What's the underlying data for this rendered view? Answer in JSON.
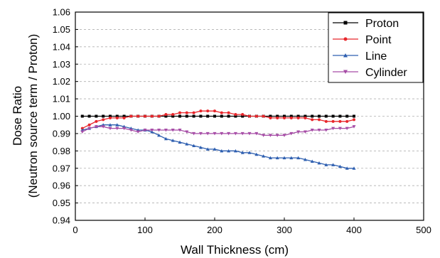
{
  "chart_data": {
    "type": "line",
    "xlabel": "Wall Thickness (cm)",
    "ylabel_line1": "Dose Ratio",
    "ylabel_line2": "(Neutron source term / Proton)",
    "xlim": [
      0,
      500
    ],
    "ylim": [
      0.94,
      1.06
    ],
    "x_ticks": [
      "0",
      "100",
      "200",
      "300",
      "400",
      "500"
    ],
    "y_ticks": [
      "0.94",
      "0.95",
      "0.96",
      "0.97",
      "0.98",
      "0.99",
      "1.00",
      "1.01",
      "1.02",
      "1.03",
      "1.04",
      "1.05",
      "1.06"
    ],
    "grid": "horizontal dashed",
    "legend_position": "top-right",
    "x": [
      10,
      20,
      30,
      40,
      50,
      60,
      70,
      80,
      90,
      100,
      110,
      120,
      130,
      140,
      150,
      160,
      170,
      180,
      190,
      200,
      210,
      220,
      230,
      240,
      250,
      260,
      270,
      280,
      290,
      300,
      310,
      320,
      330,
      340,
      350,
      360,
      370,
      380,
      390,
      400
    ],
    "series": [
      {
        "name": "Proton",
        "color": "#000000",
        "marker": "square",
        "values": [
          1.0,
          1.0,
          1.0,
          1.0,
          1.0,
          1.0,
          1.0,
          1.0,
          1.0,
          1.0,
          1.0,
          1.0,
          1.0,
          1.0,
          1.0,
          1.0,
          1.0,
          1.0,
          1.0,
          1.0,
          1.0,
          1.0,
          1.0,
          1.0,
          1.0,
          1.0,
          1.0,
          1.0,
          1.0,
          1.0,
          1.0,
          1.0,
          1.0,
          1.0,
          1.0,
          1.0,
          1.0,
          1.0,
          1.0,
          1.0
        ]
      },
      {
        "name": "Point",
        "color": "#e8262b",
        "marker": "circle",
        "values": [
          0.993,
          0.995,
          0.997,
          0.998,
          0.999,
          0.999,
          0.999,
          1.0,
          1.0,
          1.0,
          1.0,
          1.0,
          1.001,
          1.001,
          1.002,
          1.002,
          1.002,
          1.003,
          1.003,
          1.003,
          1.002,
          1.002,
          1.001,
          1.001,
          1.0,
          1.0,
          1.0,
          0.999,
          0.999,
          0.999,
          0.999,
          0.999,
          0.999,
          0.998,
          0.998,
          0.997,
          0.997,
          0.997,
          0.997,
          0.998
        ]
      },
      {
        "name": "Line",
        "color": "#2e5fb0",
        "marker": "triangle-up",
        "values": [
          0.992,
          0.993,
          0.994,
          0.995,
          0.995,
          0.995,
          0.994,
          0.993,
          0.992,
          0.992,
          0.991,
          0.989,
          0.987,
          0.986,
          0.985,
          0.984,
          0.983,
          0.982,
          0.981,
          0.981,
          0.98,
          0.98,
          0.98,
          0.979,
          0.979,
          0.978,
          0.977,
          0.976,
          0.976,
          0.976,
          0.976,
          0.976,
          0.975,
          0.974,
          0.973,
          0.972,
          0.972,
          0.971,
          0.97,
          0.97
        ]
      },
      {
        "name": "Cylinder",
        "color": "#a64ca6",
        "marker": "triangle-down",
        "values": [
          0.991,
          0.993,
          0.994,
          0.994,
          0.993,
          0.993,
          0.993,
          0.992,
          0.991,
          0.992,
          0.992,
          0.992,
          0.992,
          0.992,
          0.992,
          0.991,
          0.99,
          0.99,
          0.99,
          0.99,
          0.99,
          0.99,
          0.99,
          0.99,
          0.99,
          0.99,
          0.989,
          0.989,
          0.989,
          0.989,
          0.99,
          0.991,
          0.991,
          0.992,
          0.992,
          0.992,
          0.993,
          0.993,
          0.993,
          0.994
        ]
      }
    ]
  }
}
